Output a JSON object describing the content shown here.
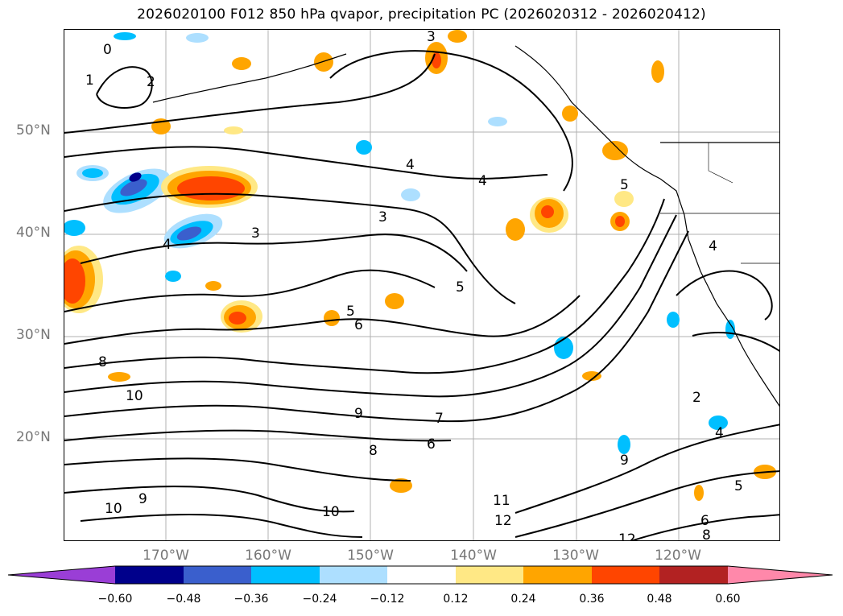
{
  "title": "2026020100 F012 850 hPa qvapor, precipitation PC (2026020312 - 2026020412)",
  "map": {
    "lat_labels": [
      "50°N",
      "40°N",
      "30°N",
      "20°N"
    ],
    "lon_labels": [
      "170°W",
      "160°W",
      "150°W",
      "140°W",
      "130°W",
      "120°W"
    ],
    "contour_labels": [
      "0",
      "1",
      "2",
      "3",
      "3",
      "3",
      "4",
      "4",
      "4",
      "5",
      "5",
      "5",
      "6",
      "6",
      "7",
      "8",
      "8",
      "9",
      "9",
      "10",
      "10",
      "10",
      "11",
      "12",
      "12",
      "2",
      "4",
      "4",
      "5",
      "6",
      "8",
      "9"
    ],
    "shading_colors": {
      "neg_extreme": "#8c3fd1",
      "neg_high": "#00008b",
      "neg_mid": "#3a5fcd",
      "neg_low": "#00bfff",
      "neg_min": "#addfff",
      "neutral": "#ffffff",
      "pos_min": "#ffe885",
      "pos_low": "#ffa500",
      "pos_mid": "#ff4500",
      "pos_high": "#b22222",
      "pos_extreme": "#ff88aa"
    }
  },
  "colorbar": {
    "ticks": [
      "−0.60",
      "−0.48",
      "−0.36",
      "−0.24",
      "−0.12",
      "0.12",
      "0.24",
      "0.36",
      "0.48",
      "0.60"
    ],
    "colors": [
      "#9a3ed6",
      "#00008b",
      "#3a5fcd",
      "#00bfff",
      "#addfff",
      "#ffffff",
      "#ffe885",
      "#ffa500",
      "#ff4500",
      "#b22222",
      "#ff88aa"
    ]
  }
}
